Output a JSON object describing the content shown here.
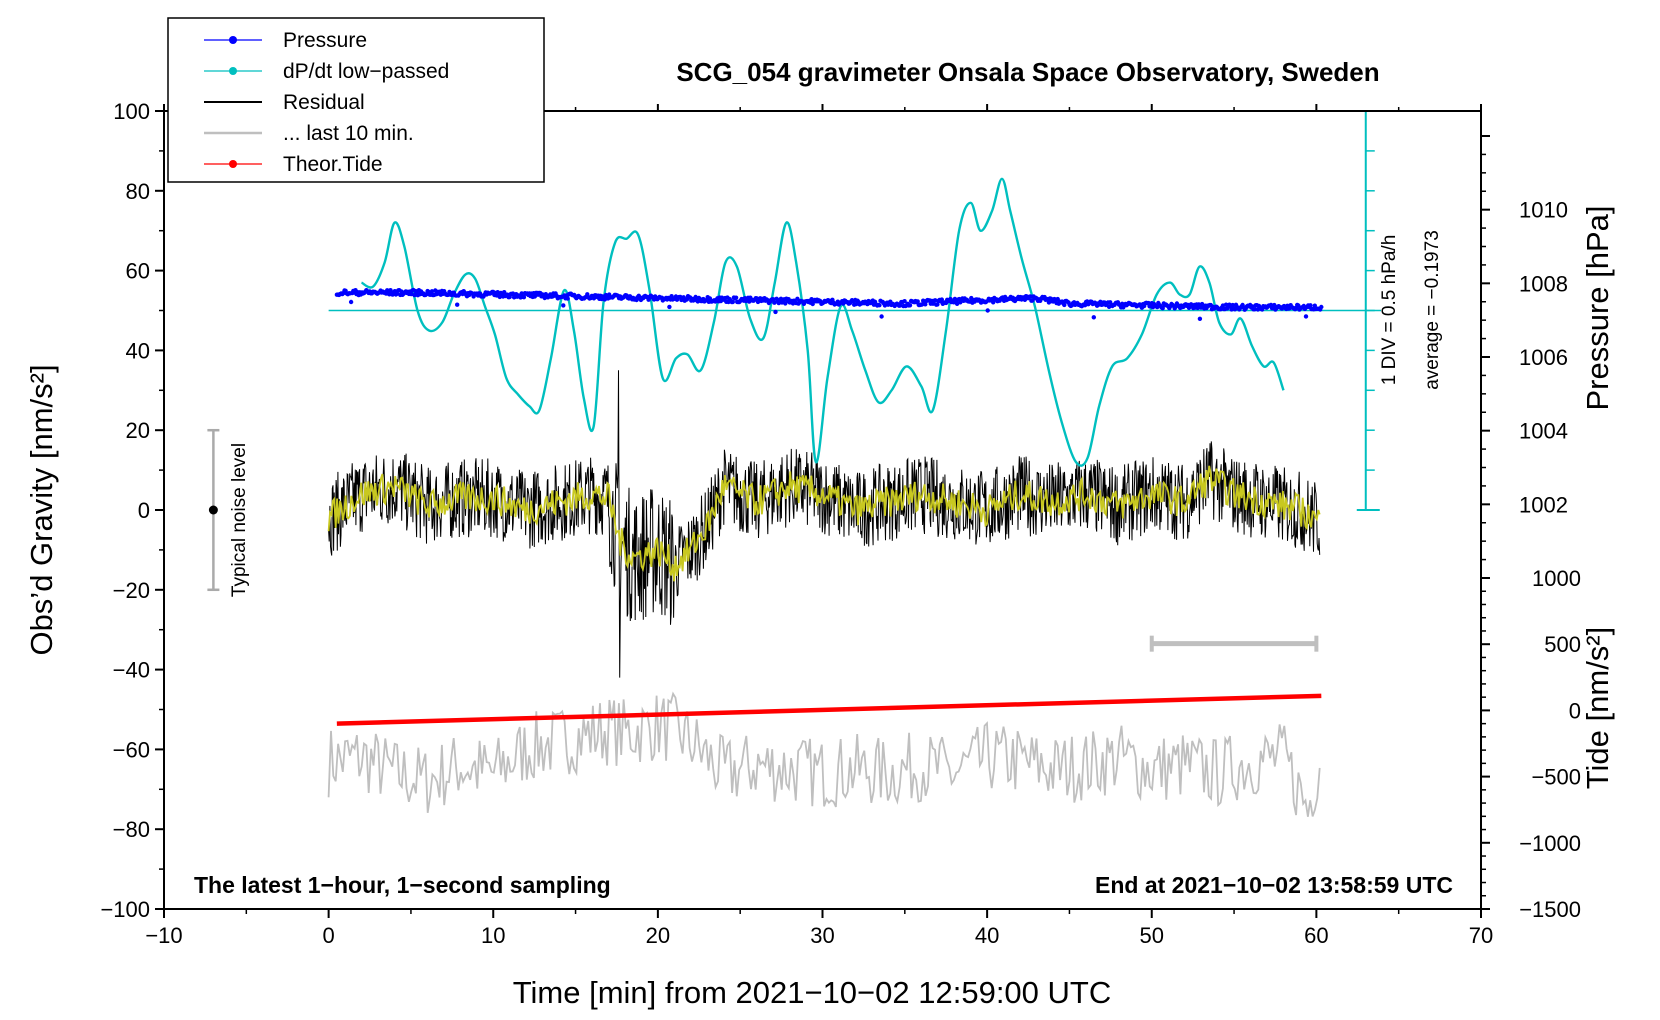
{
  "chart_data": {
    "type": "line",
    "title": "SCG_054 gravimeter Onsala Space Observatory, Sweden",
    "xlabel": "Time [min] from 2021−10−02 12:59:00 UTC",
    "ylabel_left": "Obs’d Gravity [nm/s²]",
    "ylabel_right_top": "Pressure [hPa]",
    "ylabel_right_bottom": "Tide [nm/s²]",
    "xlim": [
      -10,
      70
    ],
    "ylim": [
      -100,
      100
    ],
    "x_ticks": [
      "−10",
      "0",
      "10",
      "20",
      "30",
      "40",
      "50",
      "60",
      "70"
    ],
    "y_ticks": [
      "−100",
      "−80",
      "−60",
      "−40",
      "−20",
      "0",
      "20",
      "40",
      "60",
      "80",
      "100"
    ],
    "pressure_axis": {
      "ticks": [
        "1002",
        "1004",
        "1006",
        "1008",
        "1010"
      ],
      "range_hpa": [
        1000,
        1012
      ]
    },
    "tide_axis": {
      "ticks": [
        "−1500",
        "−1000",
        "−500",
        "0",
        "500",
        "1000"
      ],
      "range": [
        -1500,
        1000
      ]
    },
    "legend": [
      {
        "label": "Pressure",
        "color": "#0000ff"
      },
      {
        "label": "dP/dt low−passed",
        "color": "#00bfbf"
      },
      {
        "label": "Residual",
        "color": "#000000"
      },
      {
        "label": "... last 10 min.",
        "color": "#bfbfbf"
      },
      {
        "label": "Theor.Tide",
        "color": "#ff0000"
      }
    ],
    "dpdt_scale_label": "1 DIV = 0.5 hPa/h",
    "dpdt_average_label": "average = −0.1973",
    "noise_label": "Typical noise level",
    "noise_bar": {
      "x": -7,
      "center": 0,
      "half_range": 20
    },
    "left_note": "The latest 1−hour, 1−second sampling",
    "right_note": "End at 2021−10−02 13:58:59 UTC",
    "series": [
      {
        "name": "Pressure",
        "unit": "hPa",
        "color": "#0000ff",
        "x": [
          0.5,
          5,
          10,
          15,
          20,
          25,
          30,
          35,
          40,
          43,
          45,
          50,
          55,
          60.3
        ],
        "values": [
          1007.75,
          1007.75,
          1007.7,
          1007.65,
          1007.6,
          1007.55,
          1007.5,
          1007.45,
          1007.55,
          1007.6,
          1007.45,
          1007.4,
          1007.35,
          1007.35
        ]
      },
      {
        "name": "dP/dt low-passed",
        "unit": "nm/s² plot units",
        "color": "#00bfbf",
        "x": [
          2,
          2.7,
          3.4,
          4,
          4.6,
          5.4,
          6.1,
          6.9,
          7.6,
          8.3,
          8.9,
          9.5,
          10.1,
          10.8,
          11.5,
          12.2,
          12.8,
          13.5,
          14.3,
          14.9,
          15.5,
          16.1,
          16.7,
          17.4,
          18.1,
          18.8,
          19.5,
          20.3,
          21.1,
          21.8,
          22.6,
          23.4,
          24.1,
          24.8,
          25.6,
          26.4,
          27.1,
          27.8,
          28.4,
          29.1,
          29.6,
          30.3,
          31.1,
          31.8,
          32.6,
          33.4,
          34.2,
          35.1,
          36,
          36.7,
          37.5,
          38.3,
          39,
          39.6,
          40.3,
          40.9,
          41.4,
          42.1,
          42.9,
          43.8,
          44.6,
          45.4,
          46.1,
          46.8,
          47.6,
          48.5,
          49.4,
          50.3,
          51.1,
          51.7,
          52.3,
          52.9,
          53.5,
          54.1,
          54.8,
          55.4,
          56.1,
          56.8,
          57.4,
          58
        ],
        "values": [
          57,
          56,
          62,
          72,
          66,
          50,
          45,
          47,
          54,
          59,
          58,
          51,
          44,
          33,
          29,
          26,
          25,
          38,
          55,
          45,
          28,
          21,
          52,
          67,
          68,
          69,
          55,
          33,
          38,
          39,
          35,
          47,
          62,
          61,
          48,
          43,
          57,
          72,
          62,
          40,
          12,
          33,
          51,
          45,
          35,
          27,
          30,
          36,
          31,
          25,
          45,
          70,
          77,
          70,
          75,
          83,
          75,
          63,
          51,
          34,
          21,
          12,
          13,
          26,
          36,
          38,
          44,
          54,
          57,
          54,
          54,
          61,
          57,
          47,
          44,
          48,
          41,
          36,
          37,
          30
        ]
      },
      {
        "name": "Residual",
        "unit": "nm/s²",
        "color": "#000000",
        "x": [
          0,
          2,
          4,
          6,
          8,
          10,
          12,
          14,
          16,
          17,
          17.7,
          18.5,
          20,
          21,
          22,
          23,
          24,
          26,
          28,
          30,
          32,
          34,
          36,
          38,
          40,
          42,
          44,
          46,
          48,
          50,
          52,
          53.5,
          55,
          57,
          59,
          60.2
        ],
        "values": [
          -2,
          4,
          6,
          1,
          3,
          3,
          0,
          2,
          4,
          3,
          -8,
          -12,
          -10,
          -14,
          -10,
          -4,
          6,
          2,
          6,
          4,
          0,
          2,
          4,
          2,
          0,
          4,
          2,
          4,
          1,
          4,
          2,
          8,
          4,
          2,
          0,
          -3
        ]
      },
      {
        "name": "... last 10 min.",
        "unit": "plot units",
        "color": "#bfbfbf",
        "x": [
          0,
          2,
          4,
          6,
          8,
          10,
          12,
          14,
          16,
          17,
          18,
          20,
          21,
          22,
          23,
          24,
          26,
          28,
          30,
          32,
          34,
          36,
          38,
          40,
          42,
          44,
          46,
          48,
          50,
          52,
          54,
          56,
          58,
          59.5,
          60.2
        ],
        "values": [
          -63,
          -62,
          -66,
          -68,
          -64,
          -66,
          -60,
          -58,
          -56,
          -55,
          -56,
          -54,
          -55,
          -58,
          -62,
          -66,
          -64,
          -65,
          -66,
          -65,
          -66,
          -64,
          -66,
          -62,
          -63,
          -65,
          -64,
          -62,
          -65,
          -64,
          -66,
          -63,
          -62,
          -75,
          -62
        ]
      },
      {
        "name": "Theor.Tide",
        "unit": "nm/s²",
        "color": "#ff0000",
        "x": [
          0.5,
          60.3
        ],
        "values": [
          -100,
          110
        ]
      }
    ]
  }
}
